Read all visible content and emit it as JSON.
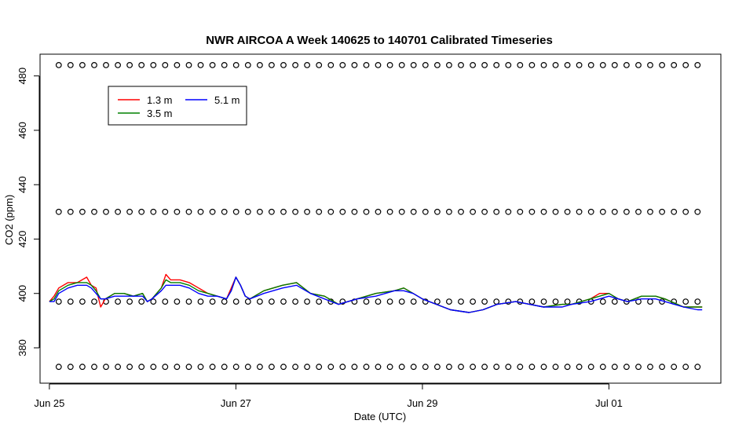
{
  "chart_data": {
    "type": "line",
    "title": "NWR AIRCOA A  Week 140625 to 140701  Calibrated Timeseries",
    "xlabel": "Date (UTC)",
    "ylabel": "CO2 (ppm)",
    "x_unit": "day",
    "xlim": [
      -0.1,
      7.2
    ],
    "ylim": [
      367,
      488
    ],
    "xticks": [
      {
        "x": 0,
        "label": "Jun 25"
      },
      {
        "x": 2,
        "label": "Jun 27"
      },
      {
        "x": 4,
        "label": "Jun 29"
      },
      {
        "x": 6,
        "label": "Jul 01"
      }
    ],
    "yticks": [
      380,
      400,
      420,
      440,
      460,
      480
    ],
    "grid": false,
    "legend": {
      "position": "top-left",
      "columns": 2
    },
    "series": [
      {
        "name": "1.3 m",
        "color": "#ff0000",
        "points": [
          [
            0,
            397
          ],
          [
            0.05,
            399
          ],
          [
            0.1,
            402
          ],
          [
            0.2,
            404
          ],
          [
            0.3,
            404
          ],
          [
            0.4,
            406
          ],
          [
            0.45,
            403
          ],
          [
            0.5,
            402
          ],
          [
            0.55,
            395
          ],
          [
            0.6,
            398
          ],
          [
            0.7,
            400
          ],
          [
            0.8,
            400
          ],
          [
            0.9,
            399
          ],
          [
            1.0,
            400
          ],
          [
            1.05,
            397
          ],
          [
            1.1,
            398
          ],
          [
            1.2,
            402
          ],
          [
            1.25,
            407
          ],
          [
            1.3,
            405
          ],
          [
            1.4,
            405
          ],
          [
            1.5,
            404
          ],
          [
            1.6,
            402
          ],
          [
            1.7,
            400
          ],
          [
            1.8,
            399
          ],
          [
            1.9,
            398
          ],
          [
            1.95,
            402
          ],
          [
            2.0,
            406
          ],
          [
            2.05,
            403
          ],
          [
            2.1,
            399
          ],
          [
            2.15,
            398
          ],
          [
            2.3,
            401
          ],
          [
            2.5,
            403
          ],
          [
            2.65,
            404
          ],
          [
            2.8,
            400
          ],
          [
            2.95,
            399
          ],
          [
            3.1,
            396
          ],
          [
            3.3,
            398
          ],
          [
            3.5,
            400
          ],
          [
            3.7,
            401
          ],
          [
            3.8,
            402
          ],
          [
            3.9,
            400
          ],
          [
            4.0,
            398
          ],
          [
            4.15,
            396
          ],
          [
            4.3,
            394
          ],
          [
            4.5,
            393
          ],
          [
            4.65,
            394
          ],
          [
            4.8,
            396
          ],
          [
            5.0,
            397
          ],
          [
            5.15,
            396
          ],
          [
            5.3,
            395
          ],
          [
            5.5,
            396
          ],
          [
            5.6,
            396
          ],
          [
            5.8,
            398
          ],
          [
            5.9,
            400
          ],
          [
            6.0,
            400
          ],
          [
            6.1,
            398
          ],
          [
            6.2,
            397
          ],
          [
            6.35,
            399
          ],
          [
            6.5,
            399
          ],
          [
            6.6,
            398
          ],
          [
            6.8,
            395
          ],
          [
            6.95,
            395
          ],
          [
            7.0,
            395
          ]
        ]
      },
      {
        "name": "3.5 m",
        "color": "#008000",
        "points": [
          [
            0,
            397
          ],
          [
            0.05,
            398
          ],
          [
            0.1,
            401
          ],
          [
            0.2,
            403
          ],
          [
            0.3,
            404
          ],
          [
            0.4,
            404
          ],
          [
            0.45,
            403
          ],
          [
            0.5,
            401
          ],
          [
            0.55,
            398
          ],
          [
            0.6,
            398
          ],
          [
            0.7,
            400
          ],
          [
            0.8,
            400
          ],
          [
            0.9,
            399
          ],
          [
            1.0,
            400
          ],
          [
            1.05,
            397
          ],
          [
            1.1,
            398
          ],
          [
            1.2,
            402
          ],
          [
            1.25,
            405
          ],
          [
            1.3,
            404
          ],
          [
            1.4,
            404
          ],
          [
            1.5,
            403
          ],
          [
            1.6,
            401
          ],
          [
            1.7,
            400
          ],
          [
            1.8,
            399
          ],
          [
            1.9,
            398
          ],
          [
            1.95,
            401
          ],
          [
            2.0,
            406
          ],
          [
            2.05,
            403
          ],
          [
            2.1,
            399
          ],
          [
            2.15,
            398
          ],
          [
            2.3,
            401
          ],
          [
            2.5,
            403
          ],
          [
            2.65,
            404
          ],
          [
            2.8,
            400
          ],
          [
            2.95,
            399
          ],
          [
            3.1,
            396
          ],
          [
            3.3,
            398
          ],
          [
            3.5,
            400
          ],
          [
            3.7,
            401
          ],
          [
            3.8,
            402
          ],
          [
            3.9,
            400
          ],
          [
            4.0,
            398
          ],
          [
            4.15,
            396
          ],
          [
            4.3,
            394
          ],
          [
            4.5,
            393
          ],
          [
            4.65,
            394
          ],
          [
            4.8,
            396
          ],
          [
            5.0,
            397
          ],
          [
            5.15,
            396
          ],
          [
            5.3,
            395
          ],
          [
            5.5,
            396
          ],
          [
            5.6,
            396
          ],
          [
            5.8,
            398
          ],
          [
            5.9,
            399
          ],
          [
            6.0,
            400
          ],
          [
            6.1,
            398
          ],
          [
            6.2,
            397
          ],
          [
            6.35,
            399
          ],
          [
            6.5,
            399
          ],
          [
            6.6,
            398
          ],
          [
            6.8,
            395
          ],
          [
            6.95,
            395
          ],
          [
            7.0,
            395
          ]
        ]
      },
      {
        "name": "5.1 m",
        "color": "#0000ff",
        "points": [
          [
            0,
            397
          ],
          [
            0.05,
            397
          ],
          [
            0.1,
            400
          ],
          [
            0.2,
            402
          ],
          [
            0.3,
            403
          ],
          [
            0.4,
            403
          ],
          [
            0.45,
            402
          ],
          [
            0.5,
            400
          ],
          [
            0.55,
            398
          ],
          [
            0.6,
            398
          ],
          [
            0.7,
            399
          ],
          [
            0.8,
            399
          ],
          [
            0.9,
            399
          ],
          [
            1.0,
            399
          ],
          [
            1.05,
            397
          ],
          [
            1.1,
            398
          ],
          [
            1.2,
            401
          ],
          [
            1.25,
            403
          ],
          [
            1.3,
            403
          ],
          [
            1.4,
            403
          ],
          [
            1.5,
            402
          ],
          [
            1.6,
            400
          ],
          [
            1.7,
            399
          ],
          [
            1.8,
            399
          ],
          [
            1.9,
            398
          ],
          [
            1.95,
            401
          ],
          [
            2.0,
            406
          ],
          [
            2.05,
            403
          ],
          [
            2.1,
            399
          ],
          [
            2.15,
            398
          ],
          [
            2.3,
            400
          ],
          [
            2.5,
            402
          ],
          [
            2.65,
            403
          ],
          [
            2.8,
            400
          ],
          [
            2.95,
            398
          ],
          [
            3.1,
            396
          ],
          [
            3.3,
            398
          ],
          [
            3.5,
            399
          ],
          [
            3.7,
            401
          ],
          [
            3.8,
            401
          ],
          [
            3.9,
            400
          ],
          [
            4.0,
            398
          ],
          [
            4.15,
            396
          ],
          [
            4.3,
            394
          ],
          [
            4.5,
            393
          ],
          [
            4.65,
            394
          ],
          [
            4.8,
            396
          ],
          [
            5.0,
            397
          ],
          [
            5.15,
            396
          ],
          [
            5.3,
            395
          ],
          [
            5.5,
            395
          ],
          [
            5.6,
            396
          ],
          [
            5.8,
            397
          ],
          [
            5.9,
            398
          ],
          [
            6.0,
            399
          ],
          [
            6.1,
            398
          ],
          [
            6.2,
            397
          ],
          [
            6.35,
            398
          ],
          [
            6.5,
            398
          ],
          [
            6.6,
            397
          ],
          [
            6.8,
            395
          ],
          [
            6.95,
            394
          ],
          [
            7.0,
            394
          ]
        ]
      }
    ],
    "calibration_points": {
      "marker": "open-circle",
      "color": "#000000",
      "levels": [
        484,
        430,
        397,
        373
      ],
      "x_start": 0.1,
      "x_end": 6.95,
      "count": 55
    }
  }
}
